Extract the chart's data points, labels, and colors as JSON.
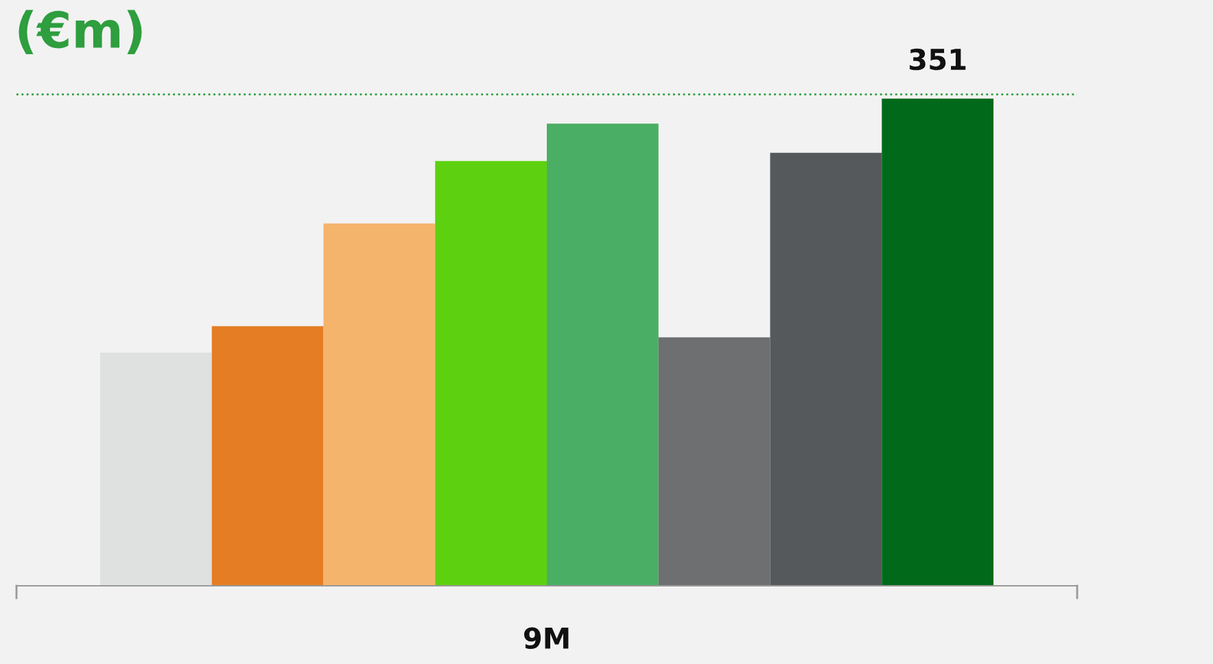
{
  "chart_data": {
    "type": "bar",
    "title": "(€m)",
    "xlabel": "9M",
    "categories": [
      null,
      null,
      null,
      null,
      null,
      null,
      null,
      null
    ],
    "values": [
      168,
      187,
      261,
      306,
      333,
      179,
      312,
      351
    ],
    "colors": [
      "#dfe1e1",
      "#e57d25",
      "#f5b46c",
      "#5dd10f",
      "#4aae64",
      "#6e6f70",
      "#56595c",
      "#016a1a"
    ],
    "value_labels": [
      null,
      null,
      null,
      null,
      null,
      null,
      null,
      "351"
    ],
    "ref_lines": [
      {
        "axis": "y",
        "value": 354,
        "color": "#2e9e3e",
        "line_style": "dotted"
      }
    ],
    "tick_labels": "x",
    "grid": false,
    "legend": false
  }
}
